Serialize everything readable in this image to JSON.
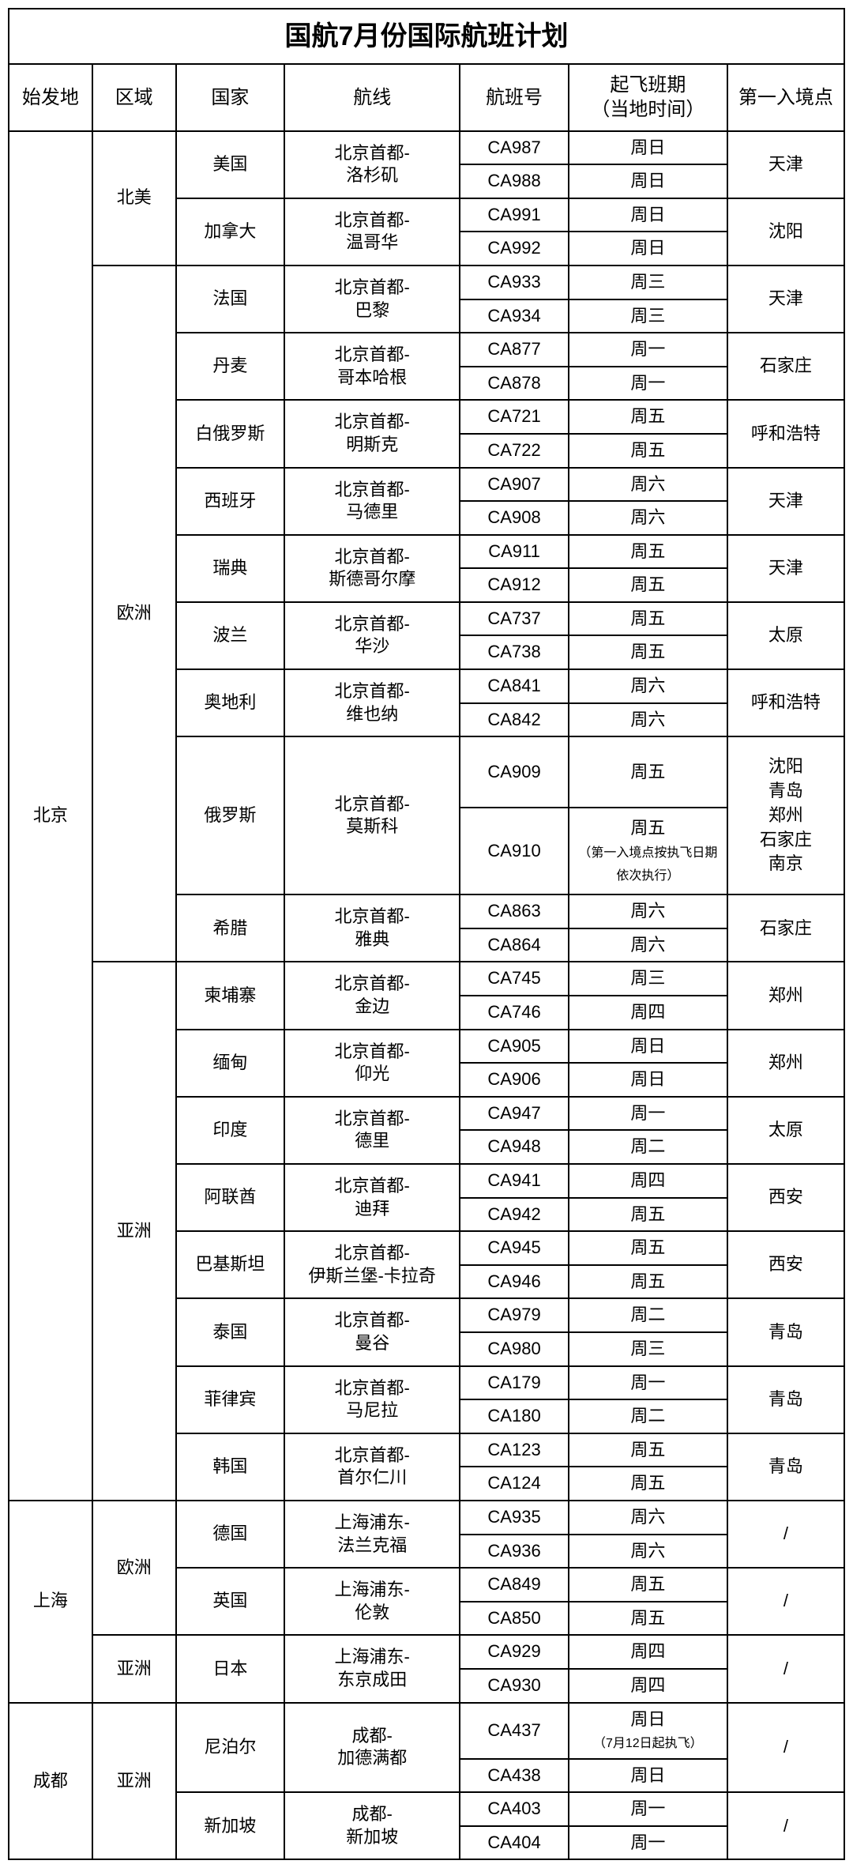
{
  "title": "国航7月份国际航班计划",
  "headers": {
    "origin": "始发地",
    "region": "区域",
    "country": "国家",
    "route": "航线",
    "flight": "航班号",
    "schedule_l1": "起飞班期",
    "schedule_l2": "（当地时间）",
    "entry": "第一入境点"
  },
  "origins": {
    "bj": "北京",
    "sh": "上海",
    "cd": "成都"
  },
  "regions": {
    "na": "北美",
    "eu": "欧洲",
    "as": "亚洲"
  },
  "countries": {
    "us": "美国",
    "ca": "加拿大",
    "fr": "法国",
    "dk": "丹麦",
    "by": "白俄罗斯",
    "es": "西班牙",
    "se": "瑞典",
    "pl": "波兰",
    "at": "奥地利",
    "ru": "俄罗斯",
    "gr": "希腊",
    "kh": "柬埔寨",
    "mm": "缅甸",
    "in": "印度",
    "ae": "阿联酋",
    "pk": "巴基斯坦",
    "th": "泰国",
    "ph": "菲律宾",
    "kr": "韩国",
    "de": "德国",
    "gb": "英国",
    "jp": "日本",
    "np": "尼泊尔",
    "sg": "新加坡"
  },
  "routes": {
    "lax": "北京首都-\n洛杉矶",
    "yvr": "北京首都-\n温哥华",
    "cdg": "北京首都-\n巴黎",
    "cph": "北京首都-\n哥本哈根",
    "msq": "北京首都-\n明斯克",
    "mad": "北京首都-\n马德里",
    "arn": "北京首都-\n斯德哥尔摩",
    "waw": "北京首都-\n华沙",
    "vie": "北京首都-\n维也纳",
    "svo": "北京首都-\n莫斯科",
    "ath": "北京首都-\n雅典",
    "pnh": "北京首都-\n金边",
    "rgn": "北京首都-\n仰光",
    "del": "北京首都-\n德里",
    "dxb": "北京首都-\n迪拜",
    "isb": "北京首都-\n伊斯兰堡-卡拉奇",
    "bkk": "北京首都-\n曼谷",
    "mnl": "北京首都-\n马尼拉",
    "icn": "北京首都-\n首尔仁川",
    "fra": "上海浦东-\n法兰克福",
    "lhr": "上海浦东-\n伦敦",
    "nrt": "上海浦东-\n东京成田",
    "ktm": "成都-\n加德满都",
    "sin": "成都-\n新加坡"
  },
  "flights": {
    "CA987": "CA987",
    "CA988": "CA988",
    "CA991": "CA991",
    "CA992": "CA992",
    "CA933": "CA933",
    "CA934": "CA934",
    "CA877": "CA877",
    "CA878": "CA878",
    "CA721": "CA721",
    "CA722": "CA722",
    "CA907": "CA907",
    "CA908": "CA908",
    "CA911": "CA911",
    "CA912": "CA912",
    "CA737": "CA737",
    "CA738": "CA738",
    "CA841": "CA841",
    "CA842": "CA842",
    "CA909": "CA909",
    "CA910": "CA910",
    "CA863": "CA863",
    "CA864": "CA864",
    "CA745": "CA745",
    "CA746": "CA746",
    "CA905": "CA905",
    "CA906": "CA906",
    "CA947": "CA947",
    "CA948": "CA948",
    "CA941": "CA941",
    "CA942": "CA942",
    "CA945": "CA945",
    "CA946": "CA946",
    "CA979": "CA979",
    "CA980": "CA980",
    "CA179": "CA179",
    "CA180": "CA180",
    "CA123": "CA123",
    "CA124": "CA124",
    "CA935": "CA935",
    "CA936": "CA936",
    "CA849": "CA849",
    "CA850": "CA850",
    "CA929": "CA929",
    "CA930": "CA930",
    "CA437": "CA437",
    "CA438": "CA438",
    "CA403": "CA403",
    "CA404": "CA404"
  },
  "days": {
    "sun": "周日",
    "mon": "周一",
    "tue": "周二",
    "wed": "周三",
    "thu": "周四",
    "fri": "周五",
    "sat": "周六"
  },
  "schedule_notes": {
    "CA910_l1": "周五",
    "CA910_l2": "（第一入境点按执飞日期依次执行）",
    "CA437_l1": "周日",
    "CA437_l2": "（7月12日起执飞）"
  },
  "entries": {
    "tj": "天津",
    "sy": "沈阳",
    "sjz": "石家庄",
    "hhht": "呼和浩特",
    "ty": "太原",
    "zz": "郑州",
    "xa": "西安",
    "qd": "青岛",
    "ru_multi": "沈阳\n青岛\n郑州\n石家庄\n南京",
    "slash": "/"
  }
}
